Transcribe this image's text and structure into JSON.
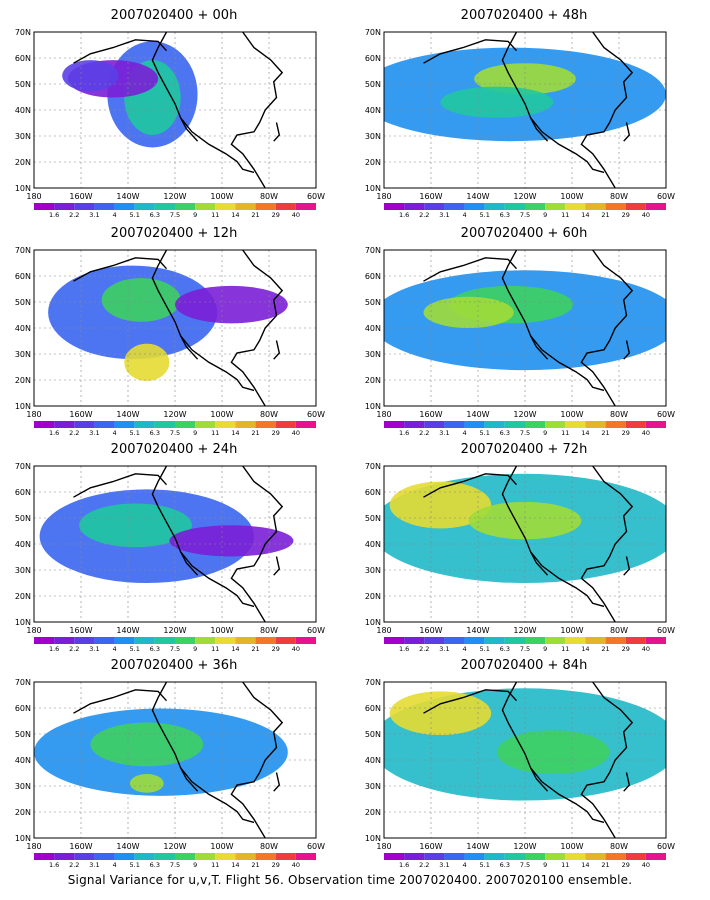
{
  "panels": [
    {
      "title": "2007020400 + 00h",
      "lead": "00h"
    },
    {
      "title": "2007020400 + 12h",
      "lead": "12h"
    },
    {
      "title": "2007020400 + 24h",
      "lead": "24h"
    },
    {
      "title": "2007020400 + 36h",
      "lead": "36h"
    },
    {
      "title": "2007020400 + 48h",
      "lead": "48h"
    },
    {
      "title": "2007020400 + 60h",
      "lead": "60h"
    },
    {
      "title": "2007020400 + 72h",
      "lead": "72h"
    },
    {
      "title": "2007020400 + 84h",
      "lead": "84h"
    }
  ],
  "axes": {
    "lat_labels": [
      "70N",
      "60N",
      "50N",
      "40N",
      "30N",
      "20N",
      "10N"
    ],
    "lon_labels": [
      "180",
      "160W",
      "140W",
      "120W",
      "100W",
      "80W",
      "60W"
    ]
  },
  "legend": {
    "labels": [
      "1.6",
      "2.2",
      "3.1",
      "4",
      "5.1",
      "6.3",
      "7.5",
      "9",
      "11",
      "14",
      "21",
      "29",
      "40"
    ],
    "colors": [
      "#a000c8",
      "#7a1fd6",
      "#5b3fe6",
      "#3a66f0",
      "#1f90f0",
      "#20b8c8",
      "#20c8a0",
      "#3ed060",
      "#a0dc38",
      "#e6dc32",
      "#e6b428",
      "#f07828",
      "#f03c3c",
      "#e6148c"
    ]
  },
  "caption": "Signal Variance for u,v,T. Flight 56. Observation time 2007020400. 2007020100 ensemble."
}
